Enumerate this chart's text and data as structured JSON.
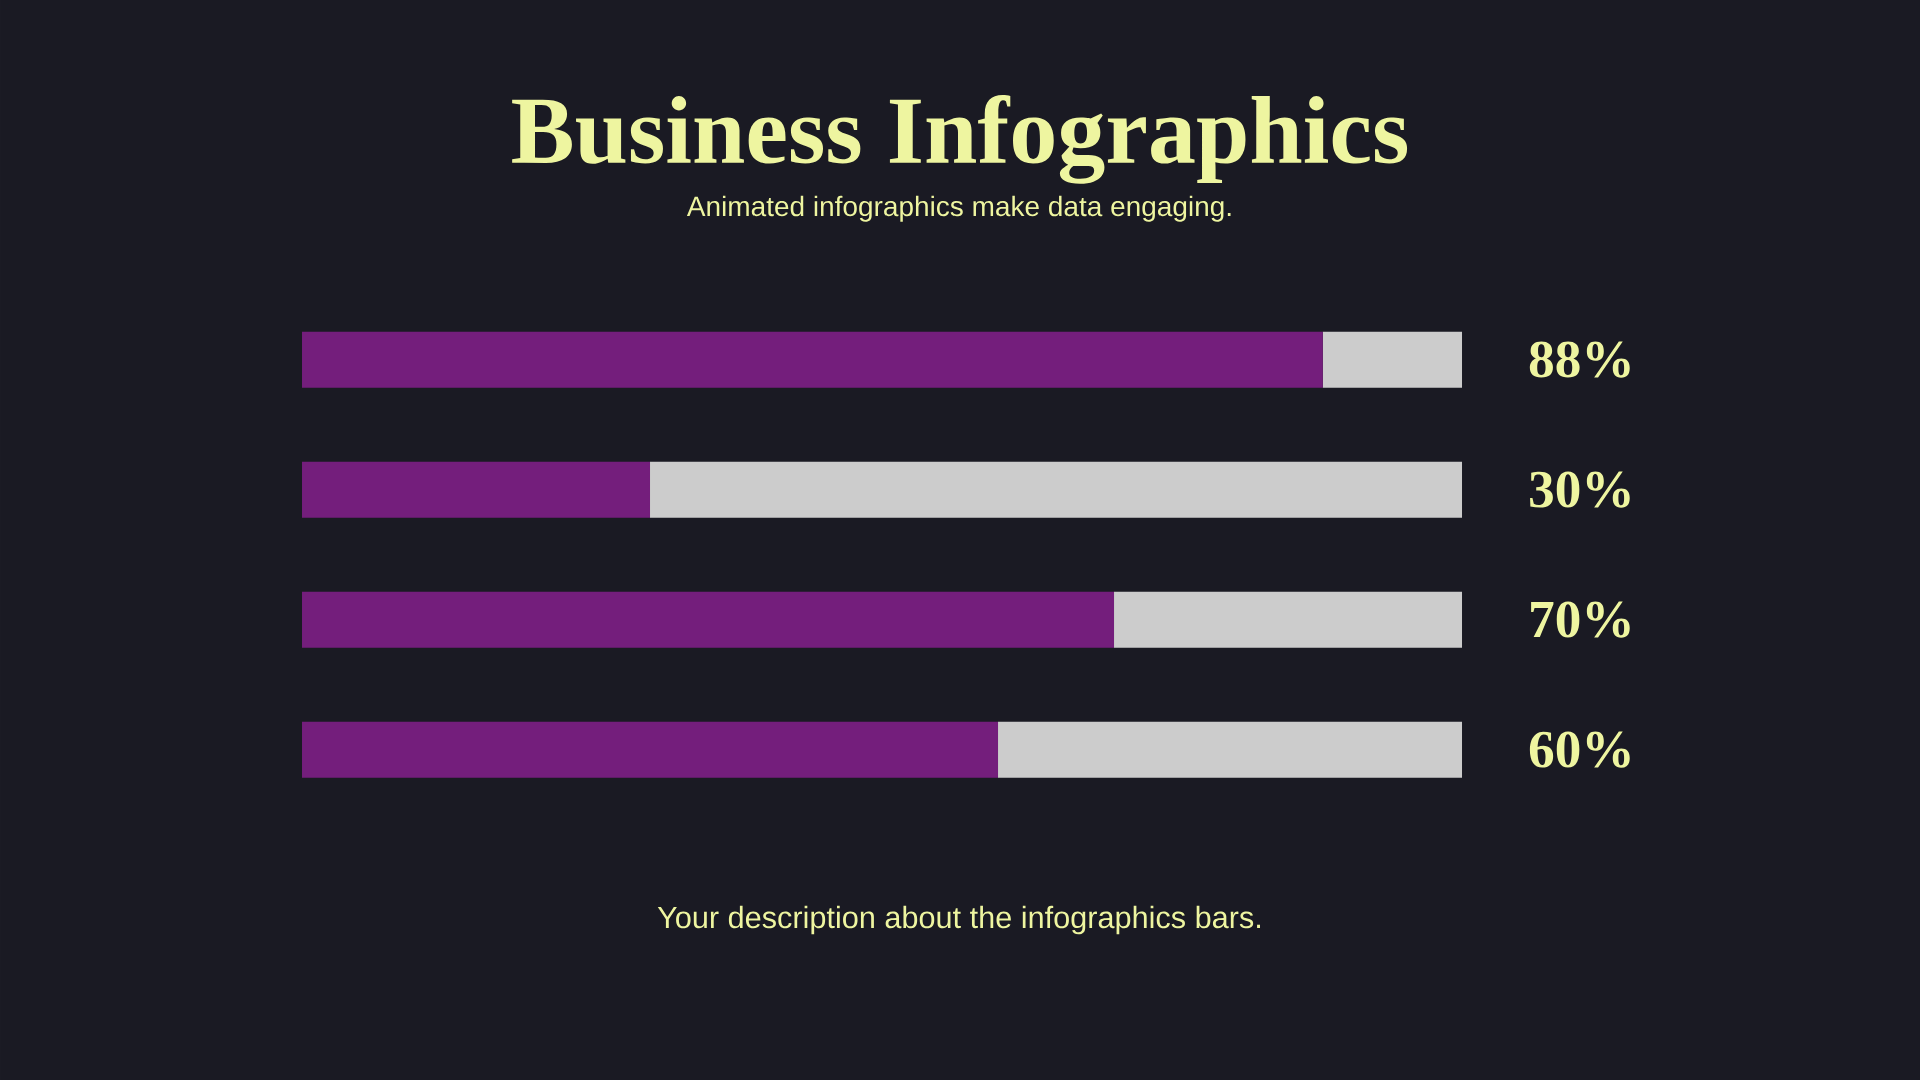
{
  "chart_data": {
    "type": "bar",
    "orientation": "horizontal",
    "stacked": true,
    "title": "Business Infographics",
    "subtitle": "Animated infographics make data engaging.",
    "categories": [
      null,
      null,
      null,
      null
    ],
    "series": [
      {
        "color": "#741e7c",
        "values": [
          88,
          30,
          70,
          60
        ],
        "value_labels": [
          "88%",
          "30%",
          "70%",
          "60%"
        ]
      },
      {
        "color": "#cccccc",
        "values": [
          12,
          70,
          30,
          40
        ]
      }
    ],
    "xlim": [
      0,
      100
    ],
    "annotations": [
      "Your description about the infographics bars."
    ]
  }
}
